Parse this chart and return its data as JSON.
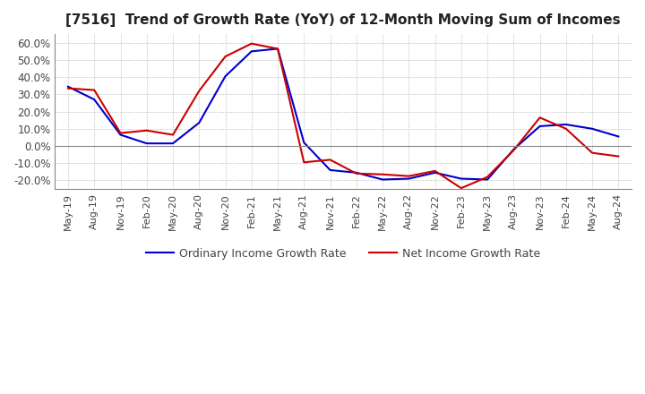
{
  "title": "[7516]  Trend of Growth Rate (YoY) of 12-Month Moving Sum of Incomes",
  "title_fontsize": 11,
  "ylim": [
    -0.25,
    0.65
  ],
  "yticks": [
    -0.2,
    -0.1,
    0.0,
    0.1,
    0.2,
    0.3,
    0.4,
    0.5,
    0.6
  ],
  "ytick_labels": [
    "-20.0%",
    "-10.0%",
    "0.0%",
    "10.0%",
    "20.0%",
    "30.0%",
    "40.0%",
    "50.0%",
    "60.0%"
  ],
  "background_color": "#ffffff",
  "plot_bg_color": "#ffffff",
  "grid_color": "#aaaaaa",
  "ordinary_color": "#0000cc",
  "net_color": "#cc0000",
  "legend_ordinary": "Ordinary Income Growth Rate",
  "legend_net": "Net Income Growth Rate",
  "x_labels": [
    "May-19",
    "Aug-19",
    "Nov-19",
    "Feb-20",
    "May-20",
    "Aug-20",
    "Nov-20",
    "Feb-21",
    "May-21",
    "Aug-21",
    "Nov-21",
    "Feb-22",
    "May-22",
    "Aug-22",
    "Nov-22",
    "Feb-23",
    "May-23",
    "Aug-23",
    "Nov-23",
    "Feb-24",
    "May-24",
    "Aug-24"
  ],
  "ordinary_data": [
    0.345,
    0.27,
    0.065,
    0.015,
    0.015,
    0.135,
    0.405,
    0.55,
    0.565,
    0.02,
    -0.14,
    -0.155,
    -0.195,
    -0.19,
    -0.155,
    -0.19,
    -0.195,
    -0.02,
    0.115,
    0.125,
    0.1,
    0.055
  ],
  "net_data": [
    0.335,
    0.325,
    0.075,
    0.09,
    0.065,
    0.32,
    0.52,
    0.595,
    0.565,
    -0.095,
    -0.08,
    -0.16,
    -0.165,
    -0.175,
    -0.145,
    -0.245,
    -0.18,
    -0.025,
    0.165,
    0.1,
    -0.04,
    -0.06
  ]
}
